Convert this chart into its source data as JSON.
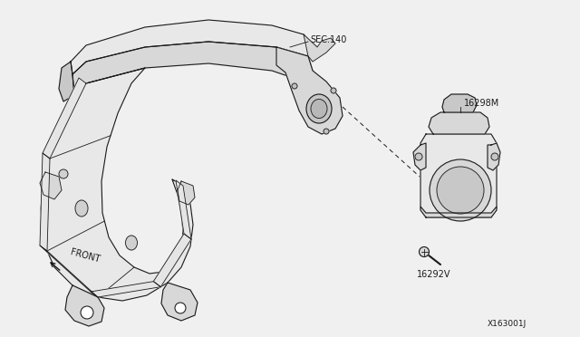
{
  "background_color": "#f0f0f0",
  "figsize": [
    6.4,
    3.72
  ],
  "dpi": 100,
  "labels": {
    "sec140": "SEC.140",
    "part1": "16298M",
    "part2": "16292V",
    "diagram_id": "X163001J",
    "front": "FRONT"
  },
  "text_color": "#1a1a1a",
  "line_color": "#1a1a1a",
  "fill_light": "#e8e8e8",
  "fill_mid": "#d8d8d8",
  "fill_dark": "#c8c8c8"
}
